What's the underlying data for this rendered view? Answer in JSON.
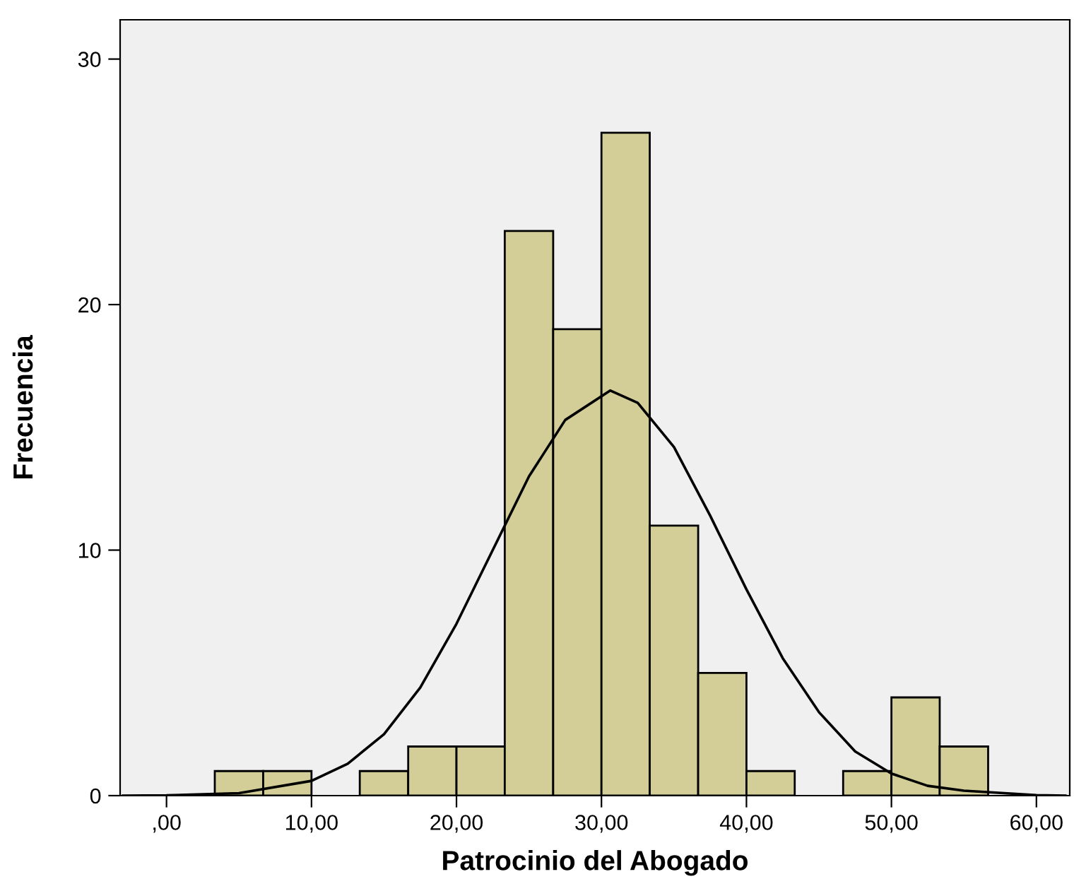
{
  "chart_data": {
    "type": "histogram",
    "xlabel": "Patrocinio del Abogado",
    "ylabel": "Frecuencia",
    "bins": [
      3.33,
      6.67,
      10,
      13.33,
      16.67,
      20,
      23.33,
      26.67,
      30,
      33.33,
      36.67,
      40,
      43.33,
      46.67,
      50,
      53.33,
      56.67
    ],
    "values": [
      1,
      1,
      0,
      1,
      2,
      2,
      23,
      19,
      27,
      11,
      5,
      1,
      0,
      1,
      4,
      2
    ],
    "color": "#d3ce97",
    "series": [
      {
        "type": "line",
        "color": "#000000",
        "x": [
          -3,
          0,
          5,
          10,
          12.5,
          15,
          17.5,
          20,
          22.5,
          25,
          27.5,
          30.6,
          32.5,
          35,
          37.5,
          40,
          42.5,
          45,
          47.5,
          50,
          52.5,
          55,
          60,
          62
        ],
        "values": [
          0,
          0.01,
          0.1,
          0.6,
          1.3,
          2.5,
          4.4,
          7,
          10,
          13,
          15.3,
          16.5,
          16,
          14.2,
          11.4,
          8.4,
          5.6,
          3.4,
          1.8,
          0.9,
          0.4,
          0.2,
          0.02,
          0
        ]
      }
    ],
    "xlim": [
      -3.2,
      62.3
    ],
    "ylim": [
      0,
      31.6
    ],
    "xticks": [
      {
        "value": 0,
        "label": ",00"
      },
      {
        "value": 10,
        "label": "10,00"
      },
      {
        "value": 20,
        "label": "20,00"
      },
      {
        "value": 30,
        "label": "30,00"
      },
      {
        "value": 40,
        "label": "40,00"
      },
      {
        "value": 50,
        "label": "50,00"
      },
      {
        "value": 60,
        "label": "60,00"
      }
    ],
    "yticks": [
      0,
      10,
      20,
      30
    ],
    "grid": false,
    "legend": false
  }
}
